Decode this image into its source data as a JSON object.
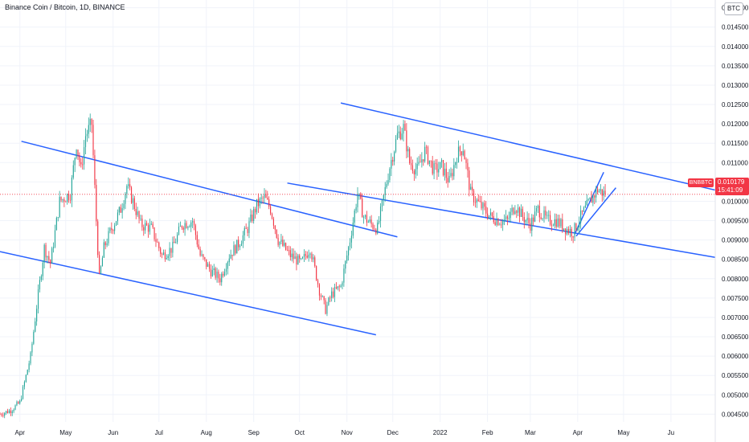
{
  "header": {
    "title": "Binance Coin / Bitcoin, 1D, BINANCE",
    "unit_badge": "BTC"
  },
  "last_price": {
    "symbol": "BNBBTC",
    "value": "0.010179",
    "countdown": "15:41:09"
  },
  "colors": {
    "up": "#26a69a",
    "down": "#f23645",
    "trendline": "#2962ff",
    "price_line": "#f23645",
    "grid": "#f0f3fa",
    "axis_text": "#131722"
  },
  "chart_data": {
    "type": "candlestick",
    "title": "Binance Coin / Bitcoin, 1D, BINANCE",
    "x_axis": {
      "range": [
        "2021-03-19",
        "2022-06-30"
      ],
      "ticks": [
        {
          "label": "Apr",
          "date": "2021-04-01"
        },
        {
          "label": "May",
          "date": "2021-05-01"
        },
        {
          "label": "Jun",
          "date": "2021-06-01"
        },
        {
          "label": "Jul",
          "date": "2021-07-01"
        },
        {
          "label": "Aug",
          "date": "2021-08-01"
        },
        {
          "label": "Sep",
          "date": "2021-09-01"
        },
        {
          "label": "Oct",
          "date": "2021-10-01"
        },
        {
          "label": "Nov",
          "date": "2021-11-01"
        },
        {
          "label": "Dec",
          "date": "2021-12-01"
        },
        {
          "label": "2022",
          "date": "2022-01-01"
        },
        {
          "label": "Feb",
          "date": "2022-02-01"
        },
        {
          "label": "Mar",
          "date": "2022-03-01"
        },
        {
          "label": "Apr",
          "date": "2022-04-01"
        },
        {
          "label": "May",
          "date": "2022-05-01"
        },
        {
          "label": "Ju",
          "date": "2022-06-01"
        }
      ]
    },
    "y_axis": {
      "side": "right",
      "range": [
        0.0043,
        0.0152
      ],
      "ticks": [
        "0.004500",
        "0.005000",
        "0.005500",
        "0.006000",
        "0.006500",
        "0.007000",
        "0.007500",
        "0.008000",
        "0.008500",
        "0.009000",
        "0.009500",
        "0.010000",
        "0.010500",
        "0.011000",
        "0.011500",
        "0.012000",
        "0.012500",
        "0.013000",
        "0.013500",
        "0.014000",
        "0.014500",
        "0.015000"
      ]
    },
    "grid": true,
    "series": {
      "interval": "1D",
      "anchors": [
        {
          "date": "2021-03-19",
          "close": 0.0045
        },
        {
          "date": "2021-03-26",
          "close": 0.0046
        },
        {
          "date": "2021-04-01",
          "close": 0.0048
        },
        {
          "date": "2021-04-08",
          "close": 0.006
        },
        {
          "date": "2021-04-13",
          "close": 0.0076
        },
        {
          "date": "2021-04-17",
          "close": 0.0088
        },
        {
          "date": "2021-04-21",
          "close": 0.0084
        },
        {
          "date": "2021-04-27",
          "close": 0.01
        },
        {
          "date": "2021-05-04",
          "close": 0.0102
        },
        {
          "date": "2021-05-08",
          "close": 0.0115
        },
        {
          "date": "2021-05-11",
          "close": 0.0108
        },
        {
          "date": "2021-05-14",
          "close": 0.0117
        },
        {
          "date": "2021-05-18",
          "close": 0.012
        },
        {
          "date": "2021-05-21",
          "close": 0.0095
        },
        {
          "date": "2021-05-23",
          "close": 0.008
        },
        {
          "date": "2021-05-26",
          "close": 0.0088
        },
        {
          "date": "2021-05-30",
          "close": 0.0092
        },
        {
          "date": "2021-06-06",
          "close": 0.0098
        },
        {
          "date": "2021-06-10",
          "close": 0.0104
        },
        {
          "date": "2021-06-14",
          "close": 0.01
        },
        {
          "date": "2021-06-19",
          "close": 0.0094
        },
        {
          "date": "2021-06-26",
          "close": 0.0093
        },
        {
          "date": "2021-07-03",
          "close": 0.0086
        },
        {
          "date": "2021-07-10",
          "close": 0.0088
        },
        {
          "date": "2021-07-16",
          "close": 0.0094
        },
        {
          "date": "2021-07-23",
          "close": 0.0095
        },
        {
          "date": "2021-07-28",
          "close": 0.0086
        },
        {
          "date": "2021-08-04",
          "close": 0.0082
        },
        {
          "date": "2021-08-10",
          "close": 0.008
        },
        {
          "date": "2021-08-16",
          "close": 0.0086
        },
        {
          "date": "2021-08-22",
          "close": 0.0089
        },
        {
          "date": "2021-08-28",
          "close": 0.0093
        },
        {
          "date": "2021-09-03",
          "close": 0.0099
        },
        {
          "date": "2021-09-08",
          "close": 0.0101
        },
        {
          "date": "2021-09-12",
          "close": 0.0098
        },
        {
          "date": "2021-09-17",
          "close": 0.009
        },
        {
          "date": "2021-09-25",
          "close": 0.0086
        },
        {
          "date": "2021-10-02",
          "close": 0.0084
        },
        {
          "date": "2021-10-08",
          "close": 0.0088
        },
        {
          "date": "2021-10-14",
          "close": 0.0077
        },
        {
          "date": "2021-10-18",
          "close": 0.0072
        },
        {
          "date": "2021-10-22",
          "close": 0.0076
        },
        {
          "date": "2021-10-28",
          "close": 0.0078
        },
        {
          "date": "2021-11-03",
          "close": 0.009
        },
        {
          "date": "2021-11-08",
          "close": 0.0102
        },
        {
          "date": "2021-11-12",
          "close": 0.0096
        },
        {
          "date": "2021-11-17",
          "close": 0.0094
        },
        {
          "date": "2021-11-21",
          "close": 0.0093
        },
        {
          "date": "2021-11-25",
          "close": 0.0101
        },
        {
          "date": "2021-11-29",
          "close": 0.0109
        },
        {
          "date": "2021-12-04",
          "close": 0.0117
        },
        {
          "date": "2021-12-08",
          "close": 0.0119
        },
        {
          "date": "2021-12-12",
          "close": 0.011
        },
        {
          "date": "2021-12-17",
          "close": 0.0108
        },
        {
          "date": "2021-12-22",
          "close": 0.0113
        },
        {
          "date": "2021-12-28",
          "close": 0.0108
        },
        {
          "date": "2022-01-02",
          "close": 0.0109
        },
        {
          "date": "2022-01-07",
          "close": 0.0105
        },
        {
          "date": "2022-01-12",
          "close": 0.0112
        },
        {
          "date": "2022-01-16",
          "close": 0.0114
        },
        {
          "date": "2022-01-21",
          "close": 0.0102
        },
        {
          "date": "2022-01-27",
          "close": 0.0099
        },
        {
          "date": "2022-02-03",
          "close": 0.0096
        },
        {
          "date": "2022-02-09",
          "close": 0.0095
        },
        {
          "date": "2022-02-14",
          "close": 0.0095
        },
        {
          "date": "2022-02-19",
          "close": 0.0099
        },
        {
          "date": "2022-02-24",
          "close": 0.0096
        },
        {
          "date": "2022-03-01",
          "close": 0.0094
        },
        {
          "date": "2022-03-06",
          "close": 0.0098
        },
        {
          "date": "2022-03-12",
          "close": 0.0095
        },
        {
          "date": "2022-03-18",
          "close": 0.0095
        },
        {
          "date": "2022-03-24",
          "close": 0.0093
        },
        {
          "date": "2022-03-29",
          "close": 0.0092
        },
        {
          "date": "2022-04-03",
          "close": 0.0096
        },
        {
          "date": "2022-04-09",
          "close": 0.01
        },
        {
          "date": "2022-04-14",
          "close": 0.0103
        },
        {
          "date": "2022-04-19",
          "close": 0.01018
        }
      ]
    },
    "trendlines": [
      {
        "from": {
          "date": "2021-03-19",
          "price": 0.0087
        },
        "to": {
          "date": "2021-11-20",
          "price": 0.00655
        }
      },
      {
        "from": {
          "date": "2021-04-02",
          "price": 0.01155
        },
        "to": {
          "date": "2021-12-04",
          "price": 0.00908
        }
      },
      {
        "from": {
          "date": "2021-09-23",
          "price": 0.01047
        },
        "to": {
          "date": "2022-06-30",
          "price": 0.00855
        }
      },
      {
        "from": {
          "date": "2021-10-28",
          "price": 0.01254
        },
        "to": {
          "date": "2022-06-30",
          "price": 0.01029
        }
      },
      {
        "from": {
          "date": "2022-03-30",
          "price": 0.00915
        },
        "to": {
          "date": "2022-04-18",
          "price": 0.01075
        }
      },
      {
        "from": {
          "date": "2022-03-31",
          "price": 0.0091
        },
        "to": {
          "date": "2022-04-26",
          "price": 0.01035
        }
      }
    ]
  }
}
